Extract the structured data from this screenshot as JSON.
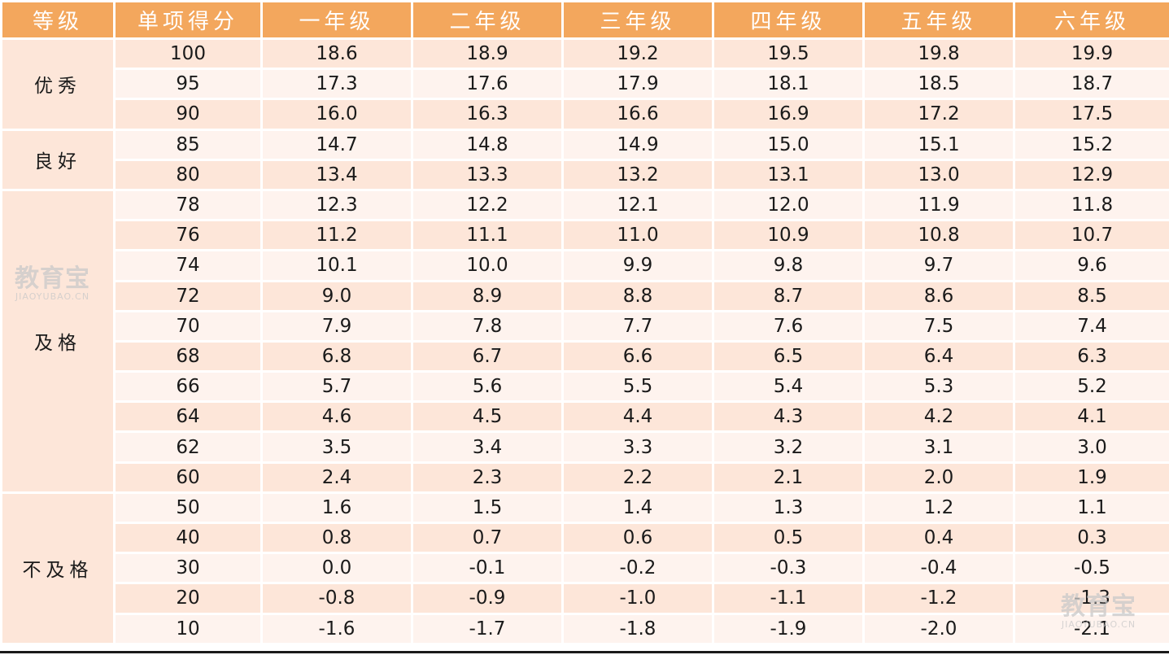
{
  "table": {
    "headers": [
      "等级",
      "单项得分",
      "一年级",
      "二年级",
      "三年级",
      "四年级",
      "五年级",
      "六年级"
    ],
    "levels": [
      {
        "name": "优秀",
        "rows": 3
      },
      {
        "name": "良好",
        "rows": 2
      },
      {
        "name": "及格",
        "rows": 10
      },
      {
        "name": "不及格",
        "rows": 5
      }
    ],
    "rows": [
      [
        "100",
        "18.6",
        "18.9",
        "19.2",
        "19.5",
        "19.8",
        "19.9"
      ],
      [
        "95",
        "17.3",
        "17.6",
        "17.9",
        "18.1",
        "18.5",
        "18.7"
      ],
      [
        "90",
        "16.0",
        "16.3",
        "16.6",
        "16.9",
        "17.2",
        "17.5"
      ],
      [
        "85",
        "14.7",
        "14.8",
        "14.9",
        "15.0",
        "15.1",
        "15.2"
      ],
      [
        "80",
        "13.4",
        "13.3",
        "13.2",
        "13.1",
        "13.0",
        "12.9"
      ],
      [
        "78",
        "12.3",
        "12.2",
        "12.1",
        "12.0",
        "11.9",
        "11.8"
      ],
      [
        "76",
        "11.2",
        "11.1",
        "11.0",
        "10.9",
        "10.8",
        "10.7"
      ],
      [
        "74",
        "10.1",
        "10.0",
        "9.9",
        "9.8",
        "9.7",
        "9.6"
      ],
      [
        "72",
        "9.0",
        "8.9",
        "8.8",
        "8.7",
        "8.6",
        "8.5"
      ],
      [
        "70",
        "7.9",
        "7.8",
        "7.7",
        "7.6",
        "7.5",
        "7.4"
      ],
      [
        "68",
        "6.8",
        "6.7",
        "6.6",
        "6.5",
        "6.4",
        "6.3"
      ],
      [
        "66",
        "5.7",
        "5.6",
        "5.5",
        "5.4",
        "5.3",
        "5.2"
      ],
      [
        "64",
        "4.6",
        "4.5",
        "4.4",
        "4.3",
        "4.2",
        "4.1"
      ],
      [
        "62",
        "3.5",
        "3.4",
        "3.3",
        "3.2",
        "3.1",
        "3.0"
      ],
      [
        "60",
        "2.4",
        "2.3",
        "2.2",
        "2.1",
        "2.0",
        "1.9"
      ],
      [
        "50",
        "1.6",
        "1.5",
        "1.4",
        "1.3",
        "1.2",
        "1.1"
      ],
      [
        "40",
        "0.8",
        "0.7",
        "0.6",
        "0.5",
        "0.4",
        "0.3"
      ],
      [
        "30",
        "0.0",
        "-0.1",
        "-0.2",
        "-0.3",
        "-0.4",
        "-0.5"
      ],
      [
        "20",
        "-0.8",
        "-0.9",
        "-1.0",
        "-1.1",
        "-1.2",
        "-1.3"
      ],
      [
        "10",
        "-1.6",
        "-1.7",
        "-1.8",
        "-1.9",
        "-2.0",
        "-2.1"
      ]
    ]
  },
  "watermark": {
    "main": "教育宝",
    "sub": "JIAOYUBAO.CN"
  },
  "colors": {
    "header_bg": "#f3a75d",
    "row_dark": "#fde6d9",
    "row_light": "#fef3ee",
    "text": "#1a1a1a"
  }
}
